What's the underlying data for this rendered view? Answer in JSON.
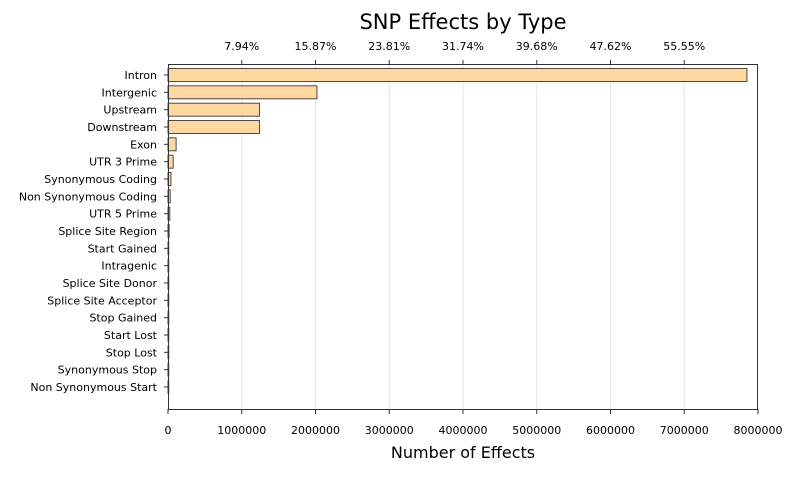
{
  "chart_data": {
    "type": "bar",
    "orientation": "horizontal",
    "title": "SNP Effects by Type",
    "xlabel": "Number of Effects",
    "ylabel": "",
    "xlim": [
      0,
      8000000
    ],
    "grid": true,
    "bar_color": "#ffd7a0",
    "x_ticks": [
      "0",
      "1000000",
      "2000000",
      "3000000",
      "4000000",
      "5000000",
      "6000000",
      "7000000",
      "8000000"
    ],
    "percent_ticks": [
      "7.94%",
      "15.87%",
      "23.81%",
      "31.74%",
      "39.68%",
      "47.62%",
      "55.55%"
    ],
    "categories": [
      "Intron",
      "Intergenic",
      "Upstream",
      "Downstream",
      "Exon",
      "UTR 3 Prime",
      "Synonymous Coding",
      "Non Synonymous Coding",
      "UTR 5 Prime",
      "Splice Site Region",
      "Start Gained",
      "Intragenic",
      "Splice Site Donor",
      "Splice Site Acceptor",
      "Stop Gained",
      "Start Lost",
      "Stop Lost",
      "Synonymous Stop",
      "Non Synonymous Start"
    ],
    "values": [
      7850000,
      2020000,
      1240000,
      1240000,
      110000,
      70000,
      40000,
      30000,
      25000,
      15000,
      2000,
      1500,
      1200,
      1000,
      800,
      500,
      300,
      200,
      100
    ]
  }
}
